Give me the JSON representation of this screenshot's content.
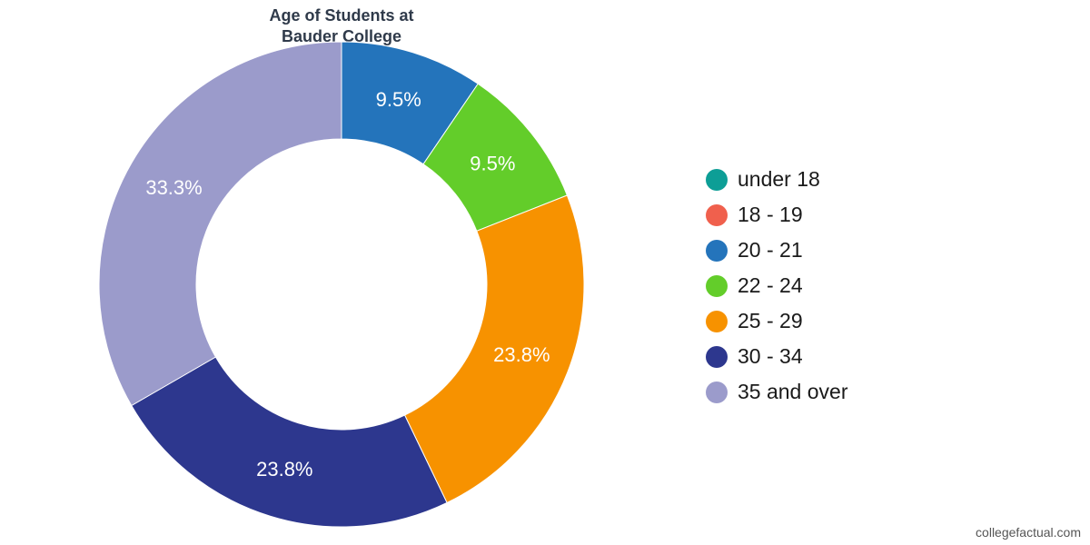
{
  "chart_data": {
    "type": "pie",
    "title_lines": [
      "Age of Students at",
      "Bauder College"
    ],
    "categories": [
      "under 18",
      "18 - 19",
      "20 - 21",
      "22 - 24",
      "25 - 29",
      "30 - 34",
      "35 and over"
    ],
    "values": [
      0,
      0,
      9.5,
      9.5,
      23.8,
      23.8,
      33.3
    ],
    "value_labels": [
      "",
      "",
      "9.5%",
      "9.5%",
      "23.8%",
      "23.8%",
      "33.3%"
    ],
    "colors": [
      "#0d9e96",
      "#f0604d",
      "#2474bb",
      "#63cd2a",
      "#f79200",
      "#2d378e",
      "#9b9bcb"
    ],
    "donut": true,
    "legend_position": "right"
  },
  "credit": "collegefactual.com"
}
